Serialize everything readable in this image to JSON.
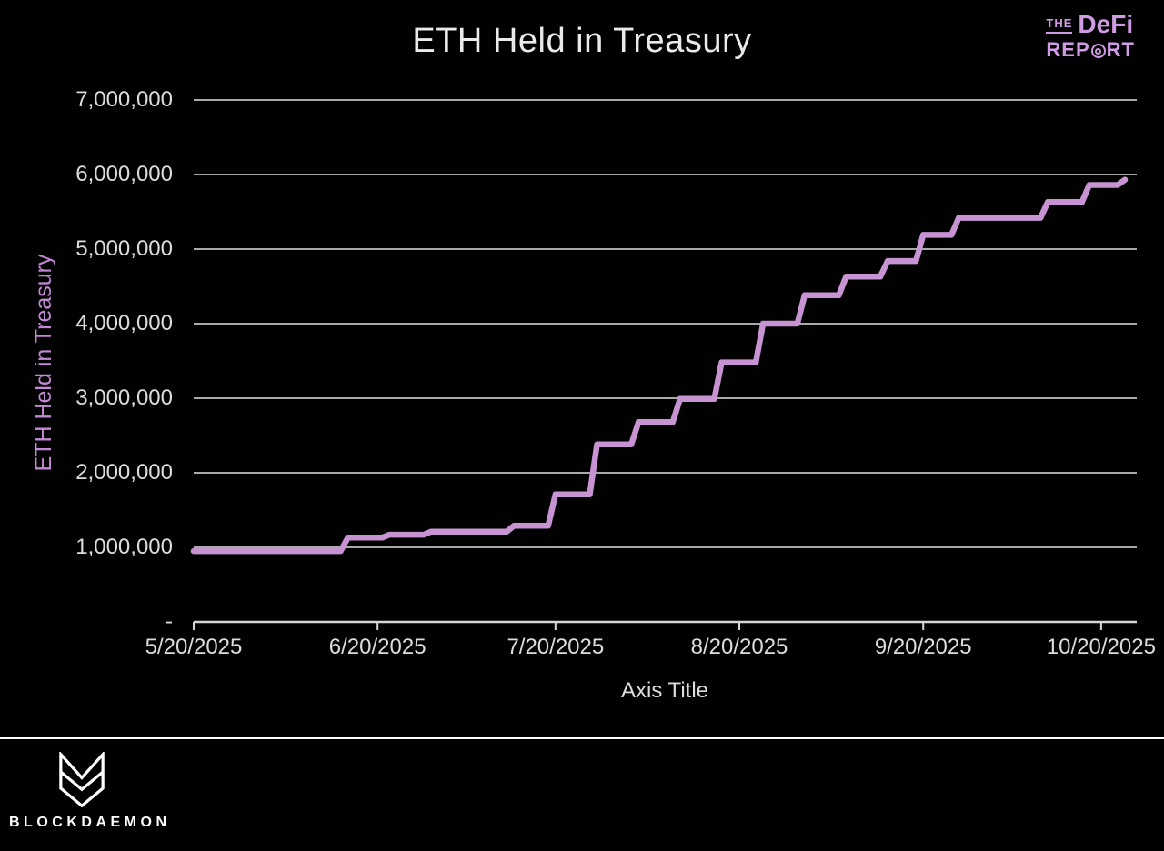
{
  "page": {
    "background": "#010101"
  },
  "header": {
    "title": "ETH Held in Treasury",
    "logo": {
      "the": "THE",
      "defi": "DeFi",
      "rep": "REP",
      "rt": "RT",
      "color": "#cf9be2"
    }
  },
  "chart_data": {
    "type": "line",
    "style": "step",
    "title": "ETH Held in Treasury",
    "xlabel": "Axis Title",
    "ylabel": "ETH Held in Treasury",
    "ylim": [
      0,
      7000000
    ],
    "x_start": "5/20/2025",
    "x_end": "10/26/2025",
    "grid": true,
    "legend_position": "none",
    "line_color": "#c893d2",
    "axis_color": "#d6d6d6",
    "grid_color": "#a9a9a9",
    "tick_label_color": "#dcdcdc",
    "x_ticks": [
      "5/20/2025",
      "6/20/2025",
      "7/20/2025",
      "8/20/2025",
      "9/20/2025",
      "10/20/2025"
    ],
    "y_ticks": [
      {
        "label": "7,000,000",
        "value": 7000000
      },
      {
        "label": "6,000,000",
        "value": 6000000
      },
      {
        "label": "5,000,000",
        "value": 5000000
      },
      {
        "label": "4,000,000",
        "value": 4000000
      },
      {
        "label": "3,000,000",
        "value": 3000000
      },
      {
        "label": "2,000,000",
        "value": 2000000
      },
      {
        "label": "1,000,000",
        "value": 1000000
      },
      {
        "label": "-",
        "value": 0
      }
    ],
    "series": [
      {
        "name": "ETH Held in Treasury",
        "points": [
          {
            "date": "5/20/2025",
            "value": 950000
          },
          {
            "date": "6/15/2025",
            "value": 1130000
          },
          {
            "date": "6/22/2025",
            "value": 1170000
          },
          {
            "date": "6/29/2025",
            "value": 1210000
          },
          {
            "date": "7/13/2025",
            "value": 1290000
          },
          {
            "date": "7/20/2025",
            "value": 1710000
          },
          {
            "date": "7/27/2025",
            "value": 2380000
          },
          {
            "date": "8/3/2025",
            "value": 2680000
          },
          {
            "date": "8/10/2025",
            "value": 2990000
          },
          {
            "date": "8/17/2025",
            "value": 3480000
          },
          {
            "date": "8/24/2025",
            "value": 4000000
          },
          {
            "date": "8/31/2025",
            "value": 4380000
          },
          {
            "date": "9/7/2025",
            "value": 4630000
          },
          {
            "date": "9/14/2025",
            "value": 4840000
          },
          {
            "date": "9/20/2025",
            "value": 5190000
          },
          {
            "date": "9/26/2025",
            "value": 5420000
          },
          {
            "date": "10/11/2025",
            "value": 5630000
          },
          {
            "date": "10/18/2025",
            "value": 5860000
          },
          {
            "date": "10/24/2025",
            "value": 5930000
          }
        ]
      }
    ]
  },
  "footer": {
    "brand": "BLOCKDAEMON"
  }
}
